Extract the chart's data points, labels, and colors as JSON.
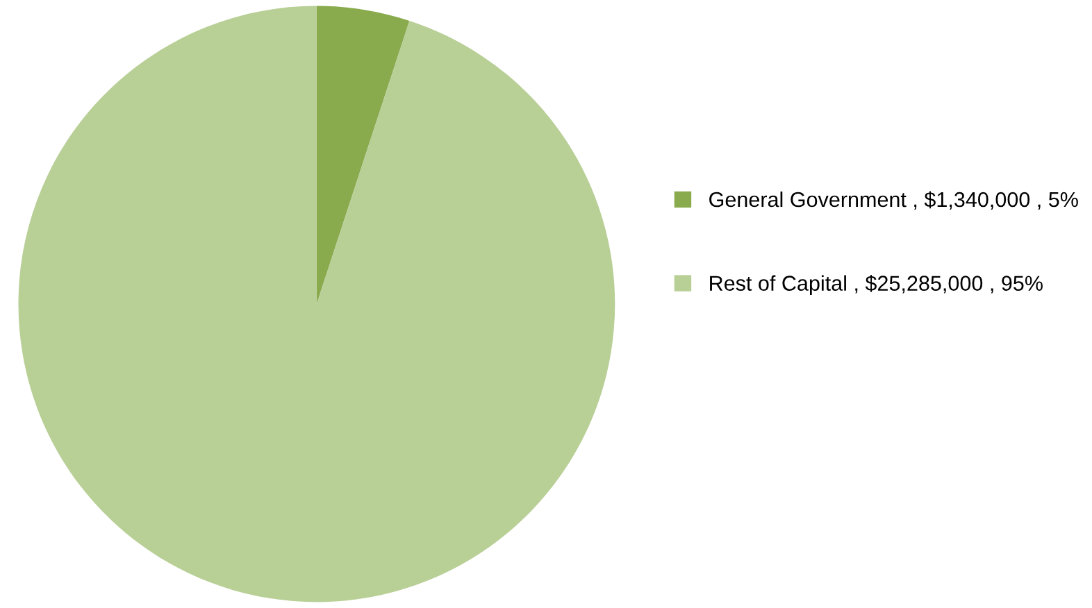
{
  "chart_data": {
    "type": "pie",
    "categories": [
      "General Government , $1,340,000 , 5%",
      "Rest of Capital , $25,285,000 , 95%"
    ],
    "values": [
      1340000,
      25285000
    ],
    "colors": [
      "#8aaa4e",
      "#b8cf96"
    ],
    "legend": "right"
  }
}
